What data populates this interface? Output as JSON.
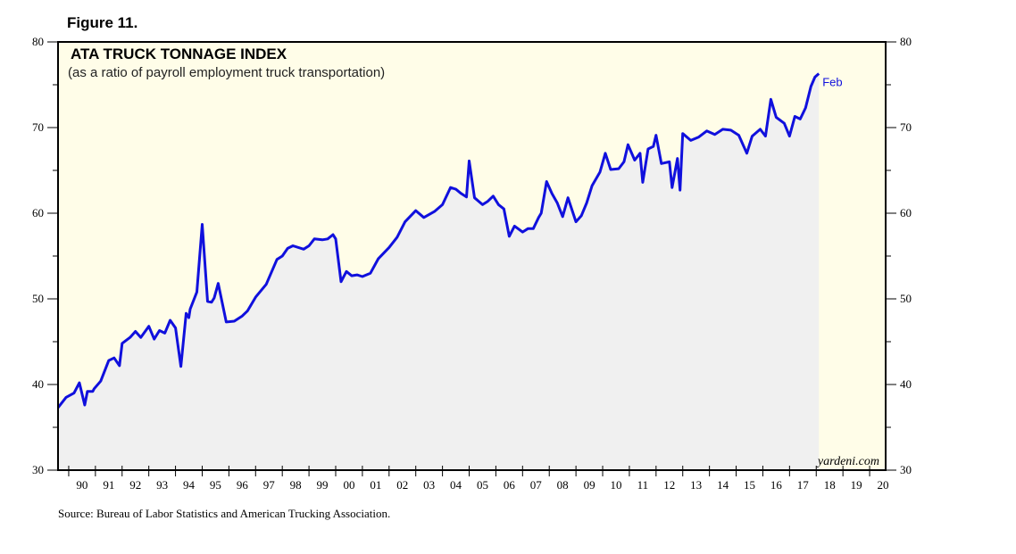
{
  "figure_label": "Figure 11.",
  "source": "Source: Bureau of Labor Statistics and American Trucking Association.",
  "watermark": "yardeni.com",
  "colors": {
    "background": "#fffde8",
    "area_fill": "#f0f0f0",
    "line": "#1010dd",
    "end_label": "#1010dd"
  },
  "chart_data": {
    "type": "line",
    "title": "ATA TRUCK TONNAGE INDEX",
    "subtitle": "(as a ratio of payroll employment truck transportation)",
    "xlabel": "",
    "ylabel": "",
    "xlim": [
      1989.6,
      2020.6
    ],
    "ylim": [
      30,
      80
    ],
    "y_ticks": [
      30,
      40,
      50,
      60,
      70,
      80
    ],
    "x_tick_labels": [
      "90",
      "91",
      "92",
      "93",
      "94",
      "95",
      "96",
      "97",
      "98",
      "99",
      "00",
      "01",
      "02",
      "03",
      "04",
      "05",
      "06",
      "07",
      "08",
      "09",
      "10",
      "11",
      "12",
      "13",
      "14",
      "15",
      "16",
      "17",
      "18",
      "19",
      "20"
    ],
    "grid": false,
    "end_label": "Feb",
    "series": [
      {
        "x": [
          1989.6,
          1989.9,
          1990.2,
          1990.4,
          1990.6,
          1990.7,
          1990.9,
          1990.95,
          1991.2,
          1991.5,
          1991.7,
          1991.9,
          1992.0,
          1992.3,
          1992.5,
          1992.7,
          1993.0,
          1993.2,
          1993.4,
          1993.6,
          1993.8,
          1994.0,
          1994.2,
          1994.4,
          1994.5,
          1994.55,
          1994.8,
          1995.0,
          1995.2,
          1995.35,
          1995.45,
          1995.6,
          1995.9,
          1996.2,
          1996.5,
          1996.7,
          1997.0,
          1997.4,
          1997.8,
          1998.0,
          1998.2,
          1998.4,
          1998.8,
          1999.0,
          1999.2,
          1999.5,
          1999.7,
          1999.9,
          2000.0,
          2000.2,
          2000.4,
          2000.6,
          2000.8,
          2001.0,
          2001.3,
          2001.6,
          2002.0,
          2002.3,
          2002.6,
          2003.0,
          2003.3,
          2003.7,
          2004.0,
          2004.3,
          2004.5,
          2004.7,
          2004.9,
          2005.0,
          2005.2,
          2005.5,
          2005.7,
          2005.9,
          2006.1,
          2006.3,
          2006.5,
          2006.7,
          2007.0,
          2007.2,
          2007.4,
          2007.6,
          2007.7,
          2007.9,
          2008.1,
          2008.3,
          2008.5,
          2008.7,
          2009.0,
          2009.2,
          2009.4,
          2009.6,
          2009.9,
          2010.1,
          2010.3,
          2010.6,
          2010.8,
          2010.95,
          2011.2,
          2011.4,
          2011.5,
          2011.7,
          2011.9,
          2012.0,
          2012.2,
          2012.5,
          2012.6,
          2012.8,
          2012.9,
          2013.0,
          2013.3,
          2013.6,
          2013.9,
          2014.2,
          2014.5,
          2014.8,
          2015.1,
          2015.4,
          2015.6,
          2015.9,
          2016.1,
          2016.3,
          2016.5,
          2016.8,
          2017.0,
          2017.2,
          2017.4,
          2017.6,
          2017.8,
          2017.95,
          2018.1
        ],
        "y": [
          37.3,
          38.5,
          39.0,
          40.2,
          37.6,
          39.2,
          39.2,
          39.5,
          40.4,
          42.8,
          43.1,
          42.2,
          44.8,
          45.5,
          46.2,
          45.5,
          46.8,
          45.3,
          46.3,
          46.0,
          47.5,
          46.6,
          42.1,
          48.3,
          47.8,
          48.8,
          50.8,
          58.7,
          49.7,
          49.6,
          50.1,
          51.8,
          47.3,
          47.4,
          48.0,
          48.6,
          50.2,
          51.7,
          54.6,
          55.0,
          55.9,
          56.2,
          55.8,
          56.2,
          57.0,
          56.9,
          57.0,
          57.5,
          57.0,
          52.0,
          53.2,
          52.7,
          52.8,
          52.6,
          53.0,
          54.7,
          56.0,
          57.2,
          59.0,
          60.3,
          59.5,
          60.2,
          61.0,
          63.0,
          62.8,
          62.3,
          61.9,
          66.1,
          61.8,
          61.0,
          61.4,
          62.0,
          61.0,
          60.5,
          57.3,
          58.5,
          57.8,
          58.2,
          58.2,
          59.5,
          60.0,
          63.7,
          62.3,
          61.2,
          59.6,
          61.8,
          59.0,
          59.7,
          61.2,
          63.2,
          64.8,
          67.0,
          65.1,
          65.2,
          66.0,
          68.0,
          66.2,
          67.0,
          63.6,
          67.5,
          67.8,
          69.1,
          65.8,
          66.0,
          63.0,
          66.4,
          62.7,
          69.3,
          68.5,
          68.9,
          69.6,
          69.2,
          69.8,
          69.7,
          69.1,
          67.0,
          69.0,
          69.8,
          69.0,
          73.3,
          71.2,
          70.5,
          69.0,
          71.3,
          71.0,
          72.3,
          74.8,
          75.9,
          76.3
        ]
      }
    ]
  }
}
